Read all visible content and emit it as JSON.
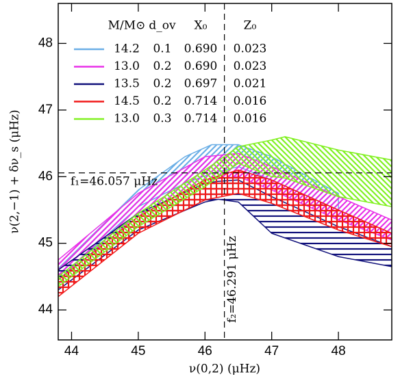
{
  "chart_data": {
    "type": "band",
    "xlabel": "ν(0,2) (μHz)",
    "ylabel": "ν(2,−1) + δν_s (μHz)",
    "xlim": [
      43.8,
      48.8
    ],
    "ylim": [
      43.55,
      48.6
    ],
    "xticks": [
      44,
      45,
      46,
      47,
      48
    ],
    "yticks": [
      44,
      45,
      46,
      47,
      48
    ],
    "legend_header": [
      "M/M⊙",
      "d_ov",
      "X₀",
      "Z₀"
    ],
    "series": [
      {
        "name": "14.2",
        "d_ov": "0.1",
        "X0": "0.690",
        "Z0": "0.023",
        "color": "#6aaee6",
        "hatch": "diag",
        "x": [
          43.8,
          45,
          45.7,
          46.1,
          46.5,
          47,
          48
        ],
        "upper": [
          44.62,
          45.8,
          46.3,
          46.48,
          46.48,
          46.3,
          45.75
        ],
        "lower": [
          44.45,
          45.55,
          45.9,
          46.05,
          46.15,
          45.95,
          45.5
        ]
      },
      {
        "name": "13.0",
        "d_ov": "0.2",
        "X0": "0.690",
        "Z0": "0.023",
        "color": "#e830e8",
        "hatch": "diag",
        "x": [
          43.8,
          45,
          46,
          46.5,
          47,
          48,
          48.8
        ],
        "upper": [
          44.75,
          45.75,
          46.3,
          46.35,
          46.15,
          45.7,
          45.35
        ],
        "lower": [
          44.45,
          45.4,
          45.95,
          46.0,
          45.8,
          45.35,
          45.05
        ]
      },
      {
        "name": "13.5",
        "d_ov": "0.2",
        "X0": "0.697",
        "Z0": "0.021",
        "color": "#10107a",
        "hatch": "horiz",
        "x": [
          43.8,
          45,
          46,
          46.2,
          46.5,
          47,
          48,
          48.8
        ],
        "upper": [
          44.6,
          45.45,
          45.9,
          45.93,
          45.95,
          45.7,
          45.25,
          44.95
        ],
        "lower": [
          44.3,
          45.2,
          45.62,
          45.66,
          45.62,
          45.15,
          44.8,
          44.65
        ]
      },
      {
        "name": "14.5",
        "d_ov": "0.2",
        "X0": "0.714",
        "Z0": "0.016",
        "color": "#f01818",
        "hatch": "grid",
        "x": [
          43.8,
          45,
          46,
          46.5,
          47,
          48,
          48.8
        ],
        "upper": [
          44.45,
          45.4,
          45.95,
          46.1,
          45.95,
          45.5,
          45.15
        ],
        "lower": [
          44.2,
          45.15,
          45.65,
          45.75,
          45.6,
          45.2,
          44.95
        ]
      },
      {
        "name": "13.0",
        "d_ov": "0.3",
        "X0": "0.714",
        "Z0": "0.016",
        "color": "#80f020",
        "hatch": "back",
        "x": [
          43.8,
          45,
          46,
          46.5,
          47,
          47.2,
          48,
          48.8
        ],
        "upper": [
          44.5,
          45.45,
          46.1,
          46.45,
          46.55,
          46.6,
          46.4,
          46.25
        ],
        "lower": [
          44.35,
          45.25,
          45.85,
          46.2,
          46.0,
          45.98,
          45.7,
          45.55
        ]
      }
    ],
    "hlines": [
      {
        "value": 46.057,
        "label": "f₁=46.057 μHz"
      }
    ],
    "vlines": [
      {
        "value": 46.291,
        "label": "f₂=46.291 μHz"
      }
    ]
  }
}
